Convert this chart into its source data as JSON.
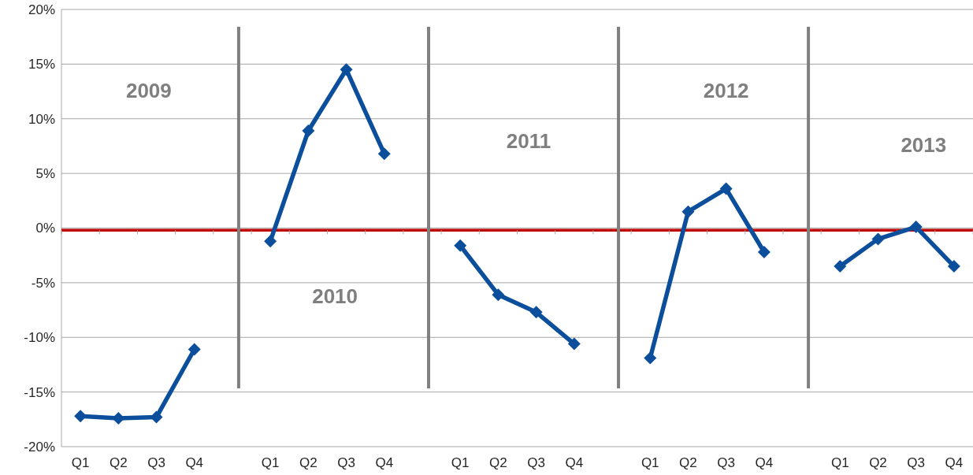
{
  "chart_data": {
    "type": "line",
    "categories": [
      "Q1",
      "Q2",
      "Q3",
      "Q4",
      null,
      "Q1",
      "Q2",
      "Q3",
      "Q4",
      null,
      "Q1",
      "Q2",
      "Q3",
      "Q4",
      null,
      "Q1",
      "Q2",
      "Q3",
      "Q4",
      null,
      "Q1",
      "Q2",
      "Q3",
      "Q4"
    ],
    "series": [
      {
        "color": "#0b4f9c",
        "values": [
          -17.2,
          -17.4,
          -17.3,
          -11.1,
          null,
          -1.2,
          8.9,
          14.5,
          6.8,
          null,
          -1.6,
          -6.1,
          -7.7,
          -10.6,
          null,
          -11.9,
          1.5,
          3.6,
          -2.2,
          null,
          -3.5,
          -1.0,
          0.1,
          -3.5
        ]
      }
    ],
    "ylim": [
      -20,
      20
    ],
    "yticks": [
      {
        "value": -20,
        "label": "-20%"
      },
      {
        "value": -15,
        "label": "-15%"
      },
      {
        "value": -10,
        "label": "-10%"
      },
      {
        "value": -5,
        "label": "-5%"
      },
      {
        "value": 0,
        "label": "0%"
      },
      {
        "value": 5,
        "label": "5%"
      },
      {
        "value": 10,
        "label": "10%"
      },
      {
        "value": 15,
        "label": "15%"
      },
      {
        "value": 20,
        "label": "20%"
      }
    ],
    "grid": "y",
    "marker": "diamond",
    "line_style": "solid",
    "ref_lines": [
      {
        "axis": "y",
        "value": -0.2,
        "color": "#c00000"
      }
    ],
    "annotations": [
      "2009",
      "2010",
      "2011",
      "2012",
      "2013"
    ]
  }
}
